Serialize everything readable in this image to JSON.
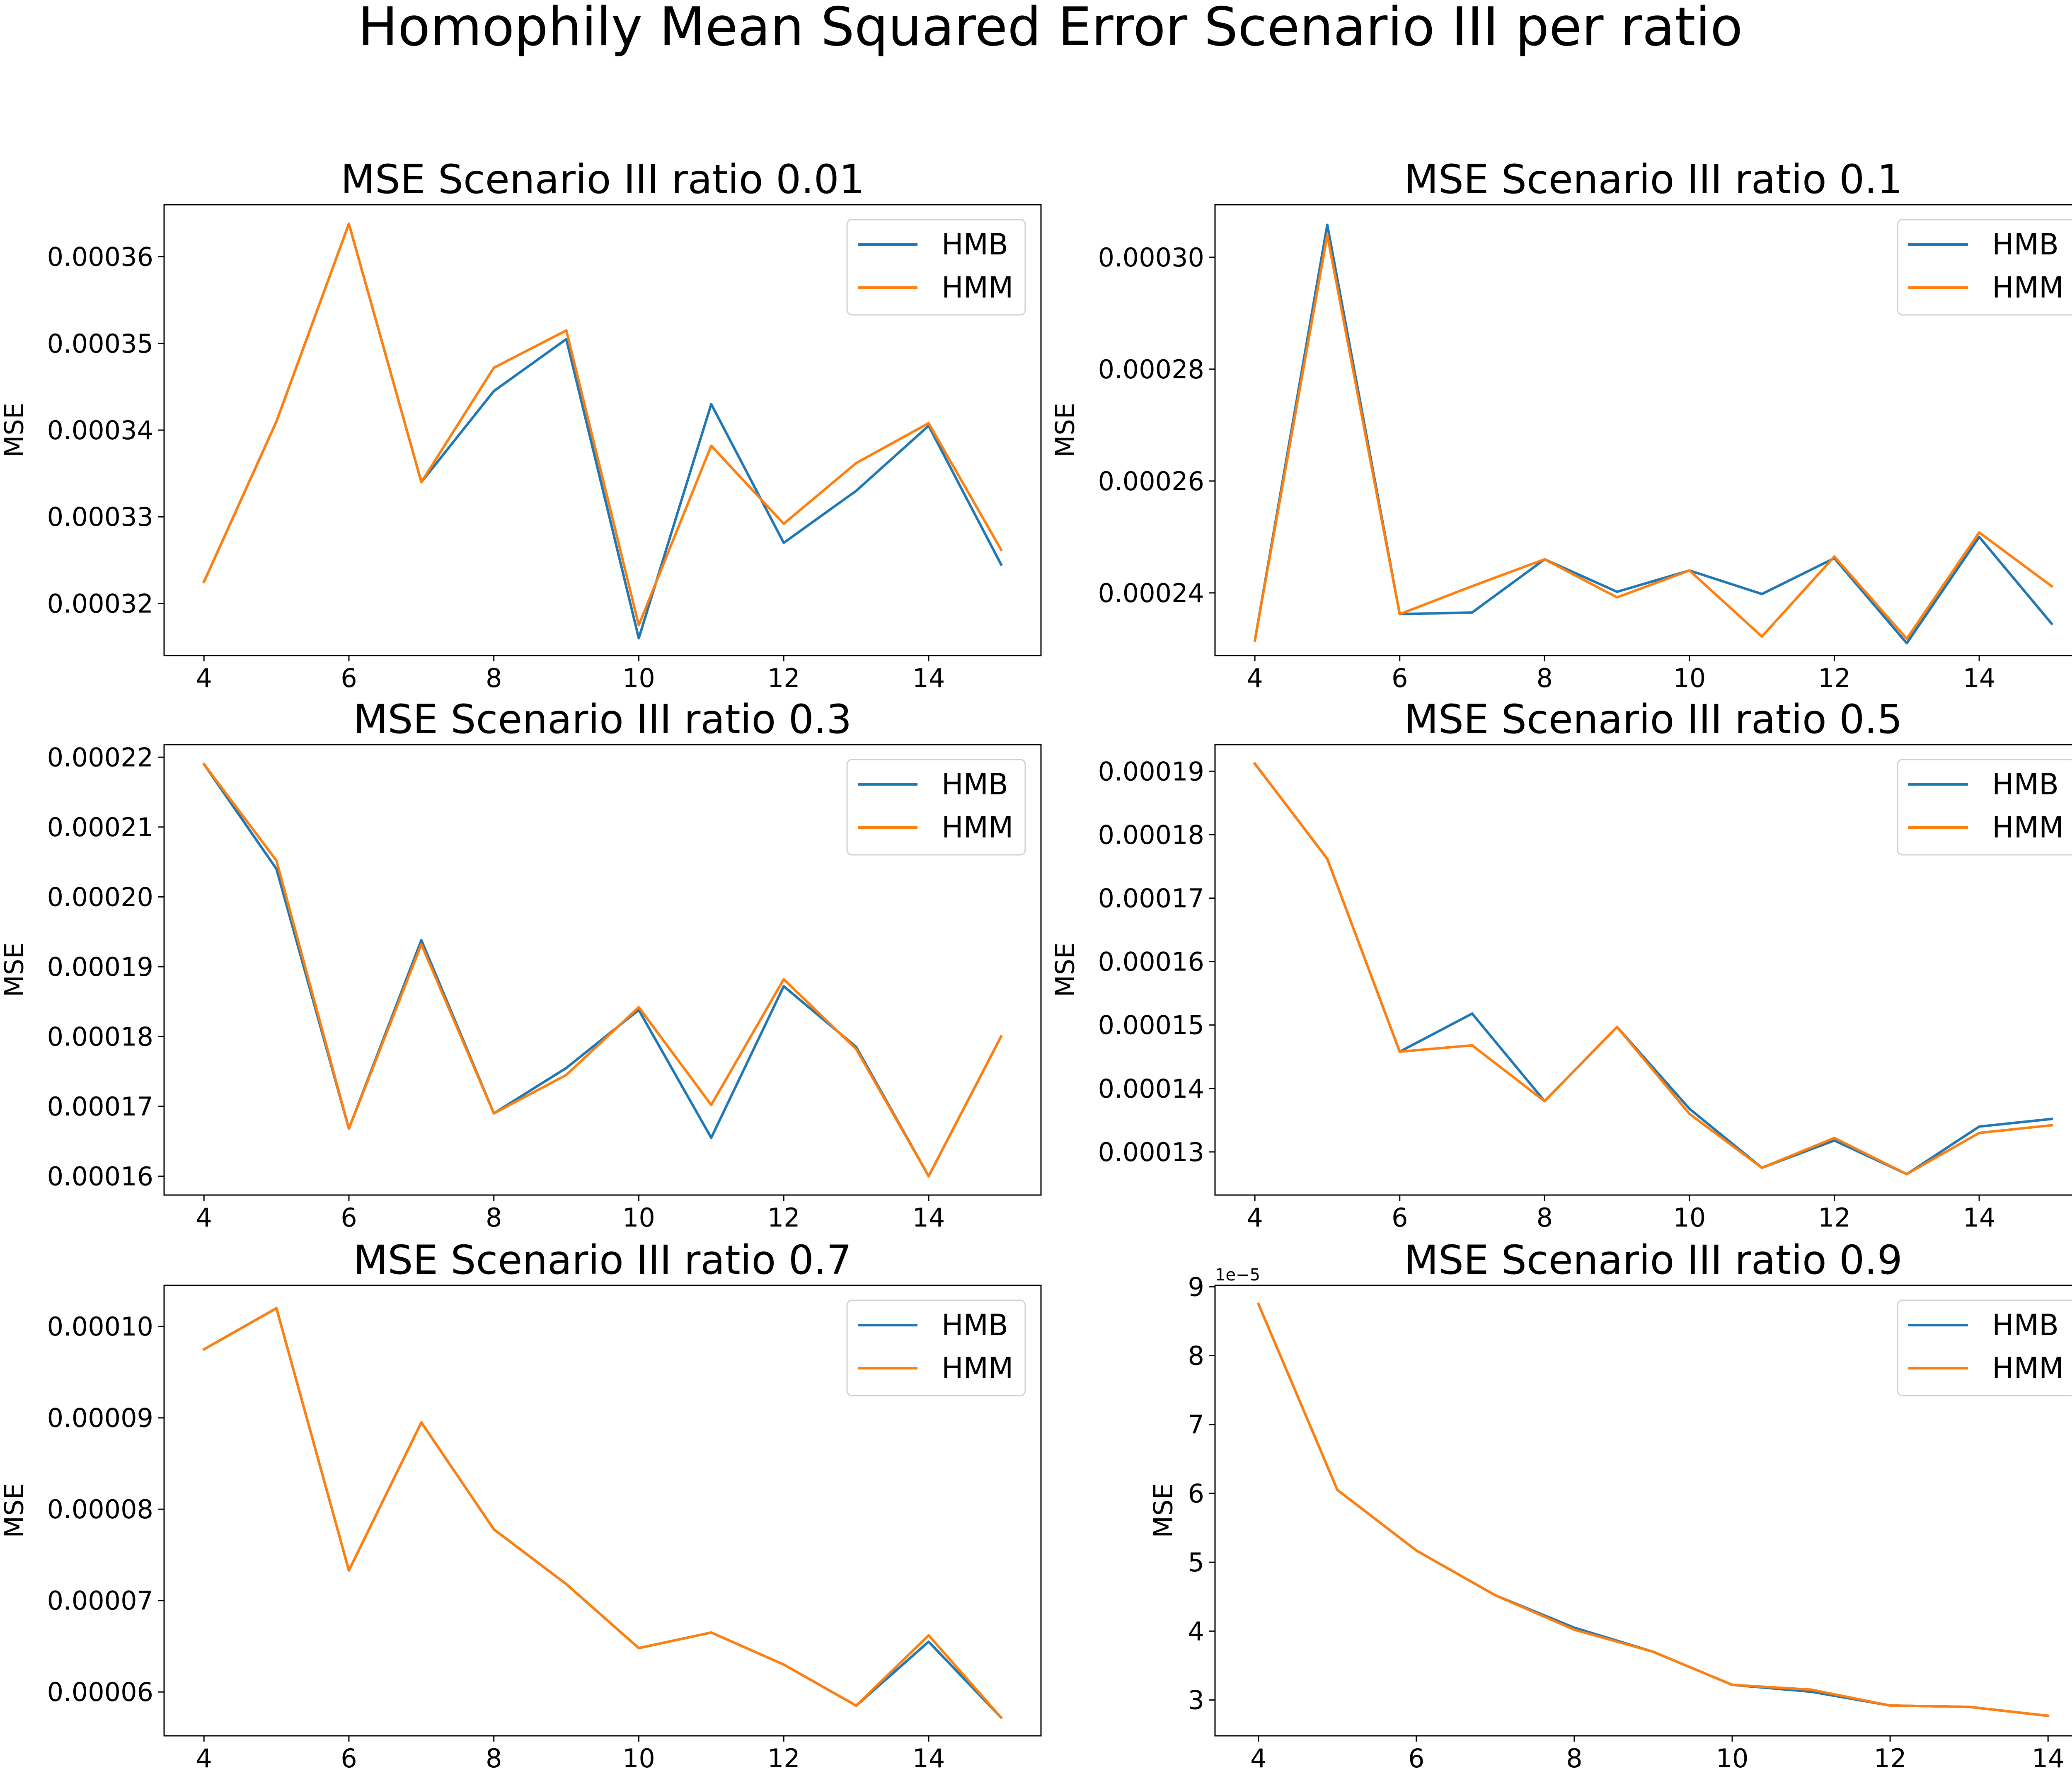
{
  "figure": {
    "title": "Homophily Mean Squared Error Scenario III per ratio"
  },
  "colors": {
    "HMB": "#1f77b4",
    "HMM": "#ff7f0e"
  },
  "chart_data": [
    {
      "type": "line",
      "title": "MSE Scenario III ratio 0.01",
      "xlabel": "",
      "ylabel": "MSE",
      "x": [
        4,
        5,
        6,
        7,
        8,
        9,
        10,
        11,
        12,
        13,
        14,
        15
      ],
      "xlim": [
        3.45,
        15.55
      ],
      "xticks": [
        4,
        6,
        8,
        10,
        12,
        14
      ],
      "ylim": [
        0.000314,
        0.000366
      ],
      "yticks": [
        0.00032,
        0.00033,
        0.00034,
        0.00035,
        0.00036
      ],
      "ytick_labels": [
        "0.00032",
        "0.00033",
        "0.00034",
        "0.00035",
        "0.00036"
      ],
      "offset_text": "",
      "legend": "top-right",
      "series": [
        {
          "name": "HMB",
          "values": [
            0.0003225,
            0.000341,
            0.0003638,
            0.000334,
            0.0003445,
            0.0003505,
            0.000316,
            0.000343,
            0.000327,
            0.000333,
            0.0003405,
            0.0003245
          ]
        },
        {
          "name": "HMM",
          "values": [
            0.0003225,
            0.000341,
            0.0003638,
            0.000334,
            0.0003472,
            0.0003515,
            0.0003175,
            0.0003382,
            0.0003292,
            0.0003362,
            0.0003408,
            0.0003262
          ]
        }
      ]
    },
    {
      "type": "line",
      "title": "MSE Scenario III ratio 0.1",
      "xlabel": "",
      "ylabel": "MSE",
      "x": [
        4,
        5,
        6,
        7,
        8,
        9,
        10,
        11,
        12,
        13,
        14,
        15
      ],
      "xlim": [
        3.45,
        15.55
      ],
      "xticks": [
        4,
        6,
        8,
        10,
        12,
        14
      ],
      "ylim": [
        0.0002288,
        0.0003094
      ],
      "yticks": [
        0.00024,
        0.00026,
        0.00028,
        0.0003
      ],
      "ytick_labels": [
        "0.00024",
        "0.00026",
        "0.00028",
        "0.00030"
      ],
      "offset_text": "",
      "legend": "top-right",
      "series": [
        {
          "name": "HMB",
          "values": [
            0.0002315,
            0.0003058,
            0.0002362,
            0.0002365,
            0.000246,
            0.0002402,
            0.000244,
            0.0002398,
            0.0002462,
            0.000231,
            0.00025,
            0.0002345
          ]
        },
        {
          "name": "HMM",
          "values": [
            0.0002315,
            0.000304,
            0.0002362,
            0.0002412,
            0.000246,
            0.0002392,
            0.000244,
            0.0002322,
            0.0002465,
            0.0002318,
            0.0002508,
            0.0002412
          ]
        }
      ]
    },
    {
      "type": "line",
      "title": "MSE Scenario III ratio 0.3",
      "xlabel": "",
      "ylabel": "MSE",
      "x": [
        4,
        5,
        6,
        7,
        8,
        9,
        10,
        11,
        12,
        13,
        14,
        15
      ],
      "xlim": [
        3.45,
        15.55
      ],
      "xticks": [
        4,
        6,
        8,
        10,
        12,
        14
      ],
      "ylim": [
        0.0001573,
        0.0002218
      ],
      "yticks": [
        0.00016,
        0.00017,
        0.00018,
        0.00019,
        0.0002,
        0.00021,
        0.00022
      ],
      "ytick_labels": [
        "0.00016",
        "0.00017",
        "0.00018",
        "0.00019",
        "0.00020",
        "0.00021",
        "0.00022"
      ],
      "offset_text": "",
      "legend": "top-right",
      "series": [
        {
          "name": "HMB",
          "values": [
            0.000219,
            0.000204,
            0.0001668,
            0.0001938,
            0.000169,
            0.0001755,
            0.0001838,
            0.0001655,
            0.0001872,
            0.0001785,
            0.00016,
            0.00018
          ]
        },
        {
          "name": "HMM",
          "values": [
            0.000219,
            0.0002052,
            0.0001668,
            0.0001932,
            0.000169,
            0.0001745,
            0.0001842,
            0.0001702,
            0.0001882,
            0.0001782,
            0.00016,
            0.00018
          ]
        }
      ]
    },
    {
      "type": "line",
      "title": "MSE Scenario III ratio 0.5",
      "xlabel": "",
      "ylabel": "MSE",
      "x": [
        4,
        5,
        6,
        7,
        8,
        9,
        10,
        11,
        12,
        13,
        14,
        15
      ],
      "xlim": [
        3.45,
        15.55
      ],
      "xticks": [
        4,
        6,
        8,
        10,
        12,
        14
      ],
      "ylim": [
        0.0001232,
        0.0001942
      ],
      "yticks": [
        0.00013,
        0.00014,
        0.00015,
        0.00016,
        0.00017,
        0.00018,
        0.00019
      ],
      "ytick_labels": [
        "0.00013",
        "0.00014",
        "0.00015",
        "0.00016",
        "0.00017",
        "0.00018",
        "0.00019"
      ],
      "offset_text": "",
      "legend": "top-right",
      "series": [
        {
          "name": "HMB",
          "values": [
            0.0001912,
            0.0001762,
            0.0001458,
            0.0001518,
            0.000138,
            0.0001497,
            0.0001368,
            0.0001275,
            0.0001318,
            0.0001265,
            0.000134,
            0.0001352
          ]
        },
        {
          "name": "HMM",
          "values": [
            0.0001912,
            0.0001762,
            0.0001458,
            0.0001468,
            0.000138,
            0.0001497,
            0.000136,
            0.0001275,
            0.0001322,
            0.0001265,
            0.000133,
            0.0001342
          ]
        }
      ]
    },
    {
      "type": "line",
      "title": "MSE Scenario III ratio 0.7",
      "xlabel": "",
      "ylabel": "MSE",
      "x": [
        4,
        5,
        6,
        7,
        8,
        9,
        10,
        11,
        12,
        13,
        14,
        15
      ],
      "xlim": [
        3.45,
        15.55
      ],
      "xticks": [
        4,
        6,
        8,
        10,
        12,
        14
      ],
      "ylim": [
        5.52e-05,
        0.0001045
      ],
      "yticks": [
        6e-05,
        7e-05,
        8e-05,
        9e-05,
        0.0001
      ],
      "ytick_labels": [
        "0.00006",
        "0.00007",
        "0.00008",
        "0.00009",
        "0.00010"
      ],
      "offset_text": "",
      "legend": "top-right",
      "series": [
        {
          "name": "HMB",
          "values": [
            9.75e-05,
            0.000102,
            7.33e-05,
            8.95e-05,
            7.78e-05,
            7.18e-05,
            6.48e-05,
            6.65e-05,
            6.3e-05,
            5.85e-05,
            6.55e-05,
            5.72e-05
          ]
        },
        {
          "name": "HMM",
          "values": [
            9.75e-05,
            0.000102,
            7.33e-05,
            8.95e-05,
            7.78e-05,
            7.18e-05,
            6.48e-05,
            6.65e-05,
            6.3e-05,
            5.85e-05,
            6.62e-05,
            5.72e-05
          ]
        }
      ]
    },
    {
      "type": "line",
      "title": "MSE Scenario III ratio 0.9",
      "xlabel": "",
      "ylabel": "MSE",
      "x": [
        4,
        5,
        6,
        7,
        8,
        9,
        10,
        11,
        12,
        13,
        14
      ],
      "xlim": [
        3.45,
        14.55
      ],
      "xticks": [
        4,
        6,
        8,
        10,
        12,
        14
      ],
      "ylim": [
        2.48,
        9.02
      ],
      "yticks": [
        3,
        4,
        5,
        6,
        7,
        8,
        9
      ],
      "ytick_labels": [
        "3",
        "4",
        "5",
        "6",
        "7",
        "8",
        "9"
      ],
      "offset_text": "1e−5",
      "legend": "top-right",
      "series": [
        {
          "name": "HMB",
          "values": [
            8.75,
            6.05,
            5.17,
            4.52,
            4.05,
            3.7,
            3.22,
            3.12,
            2.92,
            2.9,
            2.77
          ]
        },
        {
          "name": "HMM",
          "values": [
            8.75,
            6.05,
            5.17,
            4.52,
            4.02,
            3.7,
            3.22,
            3.15,
            2.92,
            2.9,
            2.77
          ]
        }
      ]
    }
  ]
}
